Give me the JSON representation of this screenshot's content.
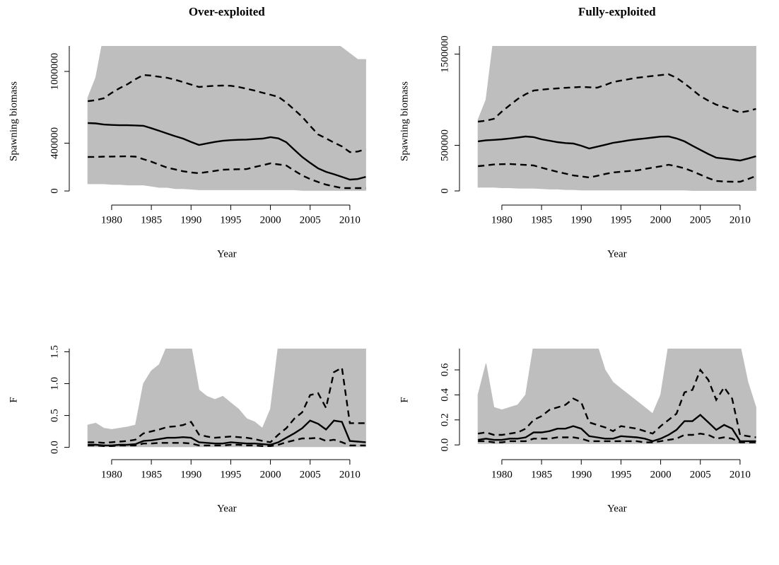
{
  "chart_data": [
    {
      "type": "line",
      "title": "Over-exploited",
      "xlabel": "Year",
      "ylabel": "Spawning biomass",
      "x": [
        1977,
        1978,
        1979,
        1980,
        1981,
        1982,
        1983,
        1984,
        1985,
        1986,
        1987,
        1988,
        1989,
        1990,
        1991,
        1992,
        1993,
        1994,
        1995,
        1996,
        1997,
        1998,
        1999,
        2000,
        2001,
        2002,
        2003,
        2004,
        2005,
        2006,
        2007,
        2008,
        2009,
        2010,
        2011,
        2012
      ],
      "xlim": [
        1976,
        2013
      ],
      "xticks": [
        1980,
        1985,
        1990,
        1995,
        2000,
        2005,
        2010
      ],
      "ylim": [
        -47000,
        1213000
      ],
      "yticks": [
        0,
        400000,
        1000000
      ],
      "band": {
        "color": "#bebebe",
        "lower": [
          60000,
          60000,
          60000,
          55000,
          55000,
          50000,
          50000,
          50000,
          40000,
          30000,
          30000,
          20000,
          20000,
          15000,
          10000,
          10000,
          10000,
          10000,
          10000,
          10000,
          10000,
          10000,
          10000,
          10000,
          10000,
          10000,
          10000,
          5000,
          5000,
          5000,
          5000,
          5000,
          5000,
          5000,
          5000,
          5000
        ],
        "upper": [
          780000,
          950000,
          1300000,
          1300000,
          1300000,
          1300000,
          1300000,
          1300000,
          1300000,
          1300000,
          1300000,
          1300000,
          1300000,
          1300000,
          1300000,
          1300000,
          1300000,
          1300000,
          1300000,
          1300000,
          1300000,
          1300000,
          1300000,
          1300000,
          1300000,
          1300000,
          1300000,
          1300000,
          1300000,
          1300000,
          1300000,
          1250000,
          1200000,
          1150000,
          1100000,
          1100000
        ]
      },
      "series": [
        {
          "color": "#000000",
          "dashed": false,
          "values": [
            568000,
            565000,
            556000,
            552000,
            550000,
            550000,
            548000,
            545000,
            525000,
            503000,
            480000,
            458000,
            438000,
            410000,
            385000,
            398000,
            410000,
            420000,
            425000,
            428000,
            430000,
            434000,
            438000,
            450000,
            440000,
            408000,
            345000,
            284000,
            235000,
            189000,
            160000,
            140000,
            118000,
            95000,
            100000,
            118000
          ]
        },
        {
          "color": "#000000",
          "dashed": true,
          "values": [
            751000,
            760000,
            775000,
            820000,
            860000,
            893000,
            935000,
            970000,
            965000,
            955000,
            947000,
            930000,
            911000,
            890000,
            870000,
            875000,
            880000,
            882000,
            880000,
            870000,
            855000,
            840000,
            822000,
            805000,
            787000,
            740000,
            680000,
            620000,
            545000,
            473000,
            440000,
            405000,
            373000,
            325000,
            330000,
            349000
          ]
        },
        {
          "color": "#000000",
          "dashed": true,
          "values": [
            284000,
            285000,
            287000,
            288000,
            289000,
            290000,
            287000,
            266000,
            245000,
            220000,
            195000,
            180000,
            165000,
            155000,
            148000,
            158000,
            168000,
            178000,
            180000,
            182000,
            183000,
            200000,
            215000,
            231000,
            222000,
            213000,
            170000,
            130000,
            100000,
            75000,
            53000,
            38000,
            24000,
            24000,
            24000,
            24000
          ]
        }
      ]
    },
    {
      "type": "line",
      "title": "Fully-exploited",
      "xlabel": "Year",
      "ylabel": "Spawning biomass",
      "x": [
        1977,
        1978,
        1979,
        1980,
        1981,
        1982,
        1983,
        1984,
        1985,
        1986,
        1987,
        1988,
        1989,
        1990,
        1991,
        1992,
        1993,
        1994,
        1995,
        1996,
        1997,
        1998,
        1999,
        2000,
        2001,
        2002,
        2003,
        2004,
        2005,
        2006,
        2007,
        2008,
        2009,
        2010,
        2011,
        2012
      ],
      "xlim": [
        1976,
        2013
      ],
      "xticks": [
        1980,
        1985,
        1990,
        1995,
        2000,
        2005,
        2010
      ],
      "ylim": [
        -62000,
        1589000
      ],
      "yticks": [
        0,
        500000,
        1500000
      ],
      "band": {
        "color": "#bebebe",
        "lower": [
          40000,
          40000,
          40000,
          35000,
          35000,
          30000,
          30000,
          30000,
          25000,
          20000,
          20000,
          15000,
          15000,
          10000,
          10000,
          10000,
          10000,
          10000,
          10000,
          10000,
          10000,
          10000,
          10000,
          10000,
          10000,
          10000,
          10000,
          5000,
          5000,
          5000,
          5000,
          5000,
          5000,
          5000,
          5000,
          5000
        ],
        "upper": [
          780000,
          1000000,
          1700000,
          1700000,
          1700000,
          1700000,
          1700000,
          1700000,
          1700000,
          1700000,
          1700000,
          1700000,
          1700000,
          1700000,
          1700000,
          1700000,
          1700000,
          1700000,
          1700000,
          1700000,
          1700000,
          1700000,
          1700000,
          1700000,
          1700000,
          1700000,
          1700000,
          1700000,
          1700000,
          1700000,
          1700000,
          1700000,
          1700000,
          1700000,
          1700000,
          1700000
        ]
      },
      "series": [
        {
          "color": "#000000",
          "dashed": false,
          "values": [
            543000,
            555000,
            560000,
            566000,
            575000,
            585000,
            597000,
            590000,
            566000,
            550000,
            535000,
            525000,
            519000,
            495000,
            465000,
            485000,
            505000,
            527000,
            540000,
            555000,
            566000,
            575000,
            585000,
            595000,
            597000,
            575000,
            543000,
            495000,
            450000,
            405000,
            364000,
            355000,
            345000,
            333000,
            355000,
            380000
          ]
        },
        {
          "color": "#000000",
          "dashed": true,
          "values": [
            760000,
            770000,
            791000,
            870000,
            940000,
            1008000,
            1060000,
            1100000,
            1110000,
            1118000,
            1124000,
            1130000,
            1135000,
            1140000,
            1136000,
            1132000,
            1160000,
            1194000,
            1210000,
            1225000,
            1240000,
            1250000,
            1260000,
            1270000,
            1279000,
            1240000,
            1178000,
            1110000,
            1039000,
            990000,
            946000,
            920000,
            890000,
            860000,
            875000,
            899000
          ]
        },
        {
          "color": "#000000",
          "dashed": true,
          "values": [
            271000,
            280000,
            290000,
            293000,
            295000,
            290000,
            285000,
            279000,
            255000,
            232000,
            209000,
            190000,
            170000,
            160000,
            147000,
            165000,
            185000,
            202000,
            210000,
            218000,
            225000,
            240000,
            255000,
            270000,
            287000,
            270000,
            248000,
            215000,
            178000,
            140000,
            109000,
            103000,
            101000,
            101000,
            130000,
            163000
          ]
        }
      ]
    },
    {
      "type": "line",
      "xlabel": "Year",
      "ylabel": "F",
      "x": [
        1977,
        1978,
        1979,
        1980,
        1981,
        1982,
        1983,
        1984,
        1985,
        1986,
        1987,
        1988,
        1989,
        1990,
        1991,
        1992,
        1993,
        1994,
        1995,
        1996,
        1997,
        1998,
        1999,
        2000,
        2001,
        2002,
        2003,
        2004,
        2005,
        2006,
        2007,
        2008,
        2009,
        2010,
        2011,
        2012
      ],
      "xlim": [
        1976,
        2013
      ],
      "xticks": [
        1980,
        1985,
        1990,
        1995,
        2000,
        2005,
        2010
      ],
      "ylim": [
        -0.06,
        1.55
      ],
      "yticks": [
        {
          "value": 0,
          "label": "0.0"
        },
        0.5,
        {
          "value": 1,
          "label": "1.0"
        },
        1.5
      ],
      "band": {
        "color": "#bebebe",
        "lower": [
          0.01,
          0.01,
          0.01,
          0.01,
          0.01,
          0.01,
          0.01,
          0.01,
          0.01,
          0.01,
          0.01,
          0.01,
          0.01,
          0.01,
          0.01,
          0.01,
          0.01,
          0.01,
          0.01,
          0.01,
          0.01,
          0.01,
          0.01,
          0.01,
          0.01,
          0.01,
          0.01,
          0.01,
          0.01,
          0.01,
          0.01,
          0.01,
          0.01,
          0.01,
          0.01,
          0.01
        ],
        "upper": [
          0.35,
          0.38,
          0.3,
          0.28,
          0.3,
          0.32,
          0.35,
          1.0,
          1.2,
          1.3,
          1.6,
          1.6,
          1.6,
          1.6,
          0.9,
          0.8,
          0.75,
          0.8,
          0.7,
          0.6,
          0.45,
          0.4,
          0.3,
          0.6,
          1.6,
          1.6,
          1.6,
          1.6,
          1.6,
          1.6,
          1.6,
          1.6,
          1.6,
          1.6,
          1.6,
          1.6
        ]
      },
      "series": [
        {
          "color": "#000000",
          "dashed": false,
          "values": [
            0.04,
            0.04,
            0.03,
            0.03,
            0.04,
            0.04,
            0.05,
            0.1,
            0.11,
            0.13,
            0.15,
            0.15,
            0.16,
            0.15,
            0.08,
            0.07,
            0.06,
            0.06,
            0.08,
            0.07,
            0.06,
            0.06,
            0.05,
            0.04,
            0.08,
            0.15,
            0.22,
            0.3,
            0.42,
            0.37,
            0.28,
            0.42,
            0.4,
            0.1,
            0.09,
            0.08
          ]
        },
        {
          "color": "#000000",
          "dashed": true,
          "values": [
            0.08,
            0.08,
            0.07,
            0.08,
            0.09,
            0.1,
            0.12,
            0.22,
            0.25,
            0.28,
            0.32,
            0.33,
            0.35,
            0.4,
            0.2,
            0.17,
            0.15,
            0.16,
            0.17,
            0.16,
            0.15,
            0.13,
            0.1,
            0.08,
            0.2,
            0.3,
            0.45,
            0.55,
            0.82,
            0.85,
            0.62,
            1.18,
            1.25,
            0.38,
            0.38,
            0.38
          ]
        },
        {
          "color": "#000000",
          "dashed": true,
          "values": [
            0.03,
            0.03,
            0.02,
            0.02,
            0.03,
            0.03,
            0.03,
            0.06,
            0.06,
            0.07,
            0.07,
            0.07,
            0.07,
            0.06,
            0.03,
            0.03,
            0.03,
            0.03,
            0.04,
            0.04,
            0.03,
            0.03,
            0.02,
            0.02,
            0.04,
            0.08,
            0.11,
            0.14,
            0.14,
            0.15,
            0.1,
            0.12,
            0.08,
            0.03,
            0.03,
            0.03
          ]
        }
      ]
    },
    {
      "type": "line",
      "xlabel": "Year",
      "ylabel": "F",
      "x": [
        1977,
        1978,
        1979,
        1980,
        1981,
        1982,
        1983,
        1984,
        1985,
        1986,
        1987,
        1988,
        1989,
        1990,
        1991,
        1992,
        1993,
        1994,
        1995,
        1996,
        1997,
        1998,
        1999,
        2000,
        2001,
        2002,
        2003,
        2004,
        2005,
        2006,
        2007,
        2008,
        2009,
        2010,
        2011,
        2012
      ],
      "xlim": [
        1976,
        2013
      ],
      "xticks": [
        1980,
        1985,
        1990,
        1995,
        2000,
        2005,
        2010
      ],
      "ylim": [
        -0.05,
        0.77
      ],
      "yticks": [
        {
          "value": 0,
          "label": "0.0"
        },
        0.2,
        0.4,
        0.6
      ],
      "band": {
        "color": "#bebebe",
        "lower": [
          0.01,
          0.01,
          0.01,
          0.01,
          0.01,
          0.01,
          0.01,
          0.01,
          0.01,
          0.01,
          0.01,
          0.01,
          0.01,
          0.01,
          0.01,
          0.01,
          0.01,
          0.01,
          0.01,
          0.01,
          0.01,
          0.01,
          0.01,
          0.01,
          0.01,
          0.01,
          0.01,
          0.01,
          0.01,
          0.01,
          0.01,
          0.01,
          0.01,
          0.01,
          0.01,
          0.01
        ],
        "upper": [
          0.4,
          0.65,
          0.3,
          0.28,
          0.3,
          0.32,
          0.4,
          0.8,
          0.8,
          0.8,
          0.8,
          0.8,
          0.8,
          0.8,
          0.8,
          0.8,
          0.6,
          0.5,
          0.45,
          0.4,
          0.35,
          0.3,
          0.25,
          0.4,
          0.8,
          0.8,
          0.8,
          0.8,
          0.8,
          0.8,
          0.8,
          0.8,
          0.8,
          0.8,
          0.5,
          0.3
        ]
      },
      "series": [
        {
          "color": "#000000",
          "dashed": false,
          "values": [
            0.04,
            0.05,
            0.04,
            0.04,
            0.05,
            0.05,
            0.06,
            0.1,
            0.1,
            0.11,
            0.13,
            0.13,
            0.15,
            0.13,
            0.07,
            0.06,
            0.05,
            0.05,
            0.07,
            0.065,
            0.06,
            0.05,
            0.03,
            0.05,
            0.08,
            0.12,
            0.19,
            0.19,
            0.24,
            0.18,
            0.12,
            0.16,
            0.13,
            0.03,
            0.03,
            0.03
          ]
        },
        {
          "color": "#000000",
          "dashed": true,
          "values": [
            0.09,
            0.1,
            0.08,
            0.08,
            0.09,
            0.1,
            0.13,
            0.2,
            0.23,
            0.28,
            0.3,
            0.32,
            0.37,
            0.34,
            0.18,
            0.16,
            0.14,
            0.11,
            0.15,
            0.14,
            0.13,
            0.11,
            0.09,
            0.15,
            0.2,
            0.25,
            0.42,
            0.44,
            0.6,
            0.52,
            0.36,
            0.46,
            0.37,
            0.08,
            0.07,
            0.06
          ]
        },
        {
          "color": "#000000",
          "dashed": true,
          "values": [
            0.03,
            0.03,
            0.02,
            0.02,
            0.03,
            0.03,
            0.03,
            0.05,
            0.05,
            0.05,
            0.06,
            0.06,
            0.06,
            0.05,
            0.03,
            0.03,
            0.03,
            0.03,
            0.03,
            0.03,
            0.03,
            0.02,
            0.02,
            0.03,
            0.04,
            0.05,
            0.08,
            0.08,
            0.09,
            0.08,
            0.05,
            0.06,
            0.05,
            0.02,
            0.02,
            0.02
          ]
        }
      ]
    }
  ]
}
